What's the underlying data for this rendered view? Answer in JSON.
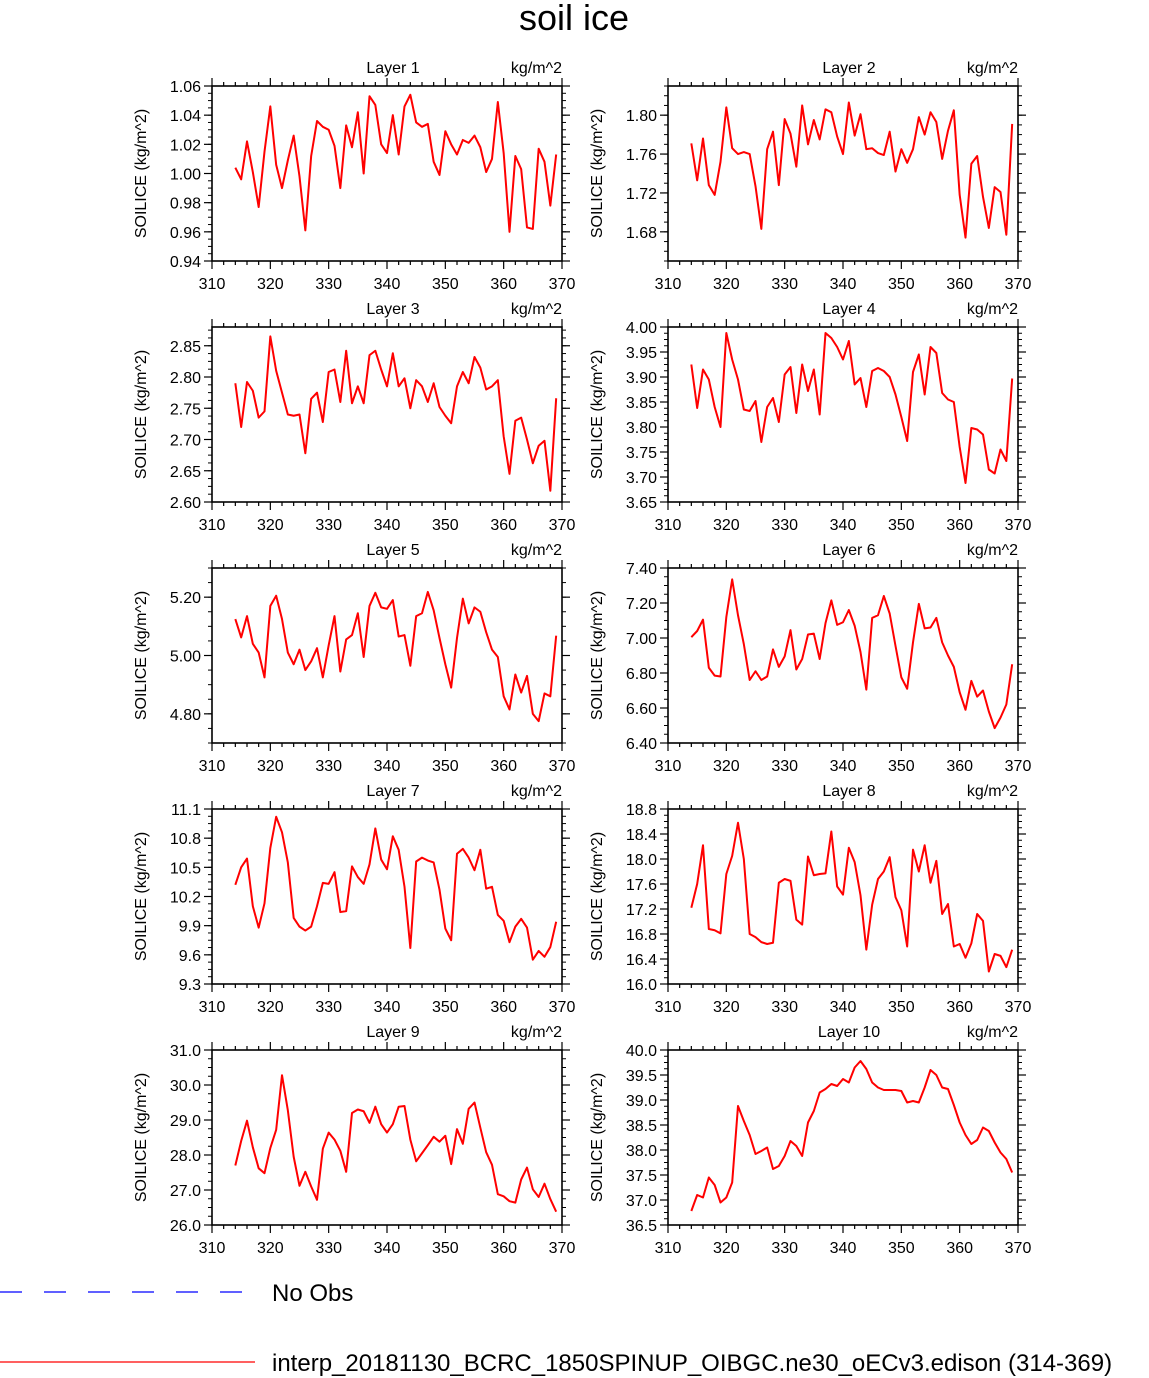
{
  "chart_data": {
    "type": "line",
    "title": "soil ice",
    "units_label": "kg/m^2",
    "ylabel": "SOILICE  (kg/m^2)",
    "x_start": 314,
    "xlim": [
      310,
      370
    ],
    "xticks": [
      310,
      320,
      330,
      340,
      350,
      360,
      370
    ],
    "colors": {
      "model": "#ff0000",
      "obs": "#0000ff",
      "axis": "#000000"
    },
    "legend": [
      {
        "name": "No Obs",
        "style": "dashed",
        "color": "#0000ff"
      },
      {
        "name": "interp_20181130_BCRC_1850SPINUP_OIBGC.ne30_oECv3.edison (314-369)",
        "style": "solid",
        "color": "#ff0000"
      }
    ],
    "panels": [
      {
        "name": "Layer 1",
        "ylim": [
          0.94,
          1.06
        ],
        "yticks": [
          0.94,
          0.96,
          0.98,
          1.0,
          1.02,
          1.04,
          1.06
        ],
        "ytick_labels": [
          "0.94",
          "0.96",
          "0.98",
          "1.00",
          "1.02",
          "1.04",
          "1.06"
        ],
        "values": [
          1.004,
          0.996,
          1.022,
          1.001,
          0.977,
          1.015,
          1.046,
          1.006,
          0.99,
          1.009,
          1.026,
          0.998,
          0.961,
          1.012,
          1.036,
          1.032,
          1.03,
          1.019,
          0.99,
          1.033,
          1.018,
          1.042,
          1.0,
          1.053,
          1.047,
          1.02,
          1.014,
          1.04,
          1.013,
          1.046,
          1.054,
          1.035,
          1.032,
          1.034,
          1.008,
          0.999,
          1.029,
          1.02,
          1.013,
          1.023,
          1.021,
          1.026,
          1.018,
          1.001,
          1.01,
          1.049,
          1.014,
          0.96,
          1.012,
          1.003,
          0.963,
          0.962,
          1.017,
          1.008,
          0.978,
          1.013
        ]
      },
      {
        "name": "Layer 2",
        "ylim": [
          1.65,
          1.83
        ],
        "yticks": [
          1.68,
          1.72,
          1.76,
          1.8
        ],
        "ytick_labels": [
          "1.68",
          "1.72",
          "1.76",
          "1.80"
        ],
        "values": [
          1.771,
          1.733,
          1.776,
          1.728,
          1.718,
          1.752,
          1.808,
          1.766,
          1.76,
          1.762,
          1.76,
          1.727,
          1.683,
          1.765,
          1.783,
          1.728,
          1.796,
          1.781,
          1.747,
          1.81,
          1.77,
          1.795,
          1.775,
          1.806,
          1.803,
          1.778,
          1.76,
          1.813,
          1.779,
          1.801,
          1.765,
          1.766,
          1.761,
          1.759,
          1.783,
          1.742,
          1.765,
          1.751,
          1.765,
          1.798,
          1.78,
          1.803,
          1.793,
          1.755,
          1.784,
          1.805,
          1.718,
          1.674,
          1.75,
          1.758,
          1.716,
          1.684,
          1.726,
          1.721,
          1.677,
          1.791
        ]
      },
      {
        "name": "Layer 3",
        "ylim": [
          2.6,
          2.88
        ],
        "yticks": [
          2.6,
          2.65,
          2.7,
          2.75,
          2.8,
          2.85
        ],
        "ytick_labels": [
          "2.60",
          "2.65",
          "2.70",
          "2.75",
          "2.80",
          "2.85"
        ],
        "values": [
          2.79,
          2.72,
          2.792,
          2.778,
          2.735,
          2.745,
          2.865,
          2.81,
          2.775,
          2.74,
          2.738,
          2.74,
          2.678,
          2.765,
          2.775,
          2.728,
          2.808,
          2.812,
          2.76,
          2.842,
          2.758,
          2.785,
          2.758,
          2.835,
          2.842,
          2.812,
          2.785,
          2.838,
          2.785,
          2.798,
          2.75,
          2.795,
          2.785,
          2.76,
          2.79,
          2.752,
          2.738,
          2.726,
          2.785,
          2.808,
          2.79,
          2.832,
          2.815,
          2.78,
          2.785,
          2.795,
          2.705,
          2.645,
          2.73,
          2.735,
          2.7,
          2.662,
          2.69,
          2.698,
          2.618,
          2.766
        ]
      },
      {
        "name": "Layer 4",
        "ylim": [
          3.65,
          4.0
        ],
        "yticks": [
          3.65,
          3.7,
          3.75,
          3.8,
          3.85,
          3.9,
          3.95,
          4.0
        ],
        "ytick_labels": [
          "3.65",
          "3.70",
          "3.75",
          "3.80",
          "3.85",
          "3.90",
          "3.95",
          "4.00"
        ],
        "values": [
          3.925,
          3.838,
          3.915,
          3.895,
          3.84,
          3.8,
          3.988,
          3.935,
          3.895,
          3.835,
          3.832,
          3.852,
          3.77,
          3.84,
          3.858,
          3.81,
          3.905,
          3.92,
          3.828,
          3.925,
          3.872,
          3.915,
          3.825,
          3.988,
          3.978,
          3.96,
          3.935,
          3.972,
          3.885,
          3.898,
          3.84,
          3.912,
          3.918,
          3.912,
          3.9,
          3.865,
          3.82,
          3.772,
          3.91,
          3.945,
          3.865,
          3.96,
          3.948,
          3.868,
          3.855,
          3.85,
          3.76,
          3.688,
          3.798,
          3.795,
          3.785,
          3.715,
          3.707,
          3.755,
          3.732,
          3.897
        ]
      },
      {
        "name": "Layer 5",
        "ylim": [
          4.7,
          5.3
        ],
        "yticks": [
          4.8,
          5.0,
          5.2
        ],
        "ytick_labels": [
          "4.80",
          "5.00",
          "5.20"
        ],
        "values": [
          5.125,
          5.062,
          5.135,
          5.04,
          5.01,
          4.925,
          5.17,
          5.205,
          5.125,
          5.01,
          4.97,
          5.02,
          4.95,
          4.98,
          5.025,
          4.925,
          5.035,
          5.135,
          4.945,
          5.055,
          5.07,
          5.145,
          4.995,
          5.17,
          5.215,
          5.165,
          5.16,
          5.19,
          5.065,
          5.07,
          4.965,
          5.135,
          5.145,
          5.218,
          5.155,
          5.06,
          4.97,
          4.89,
          5.06,
          5.195,
          5.11,
          5.165,
          5.15,
          5.08,
          5.02,
          4.995,
          4.86,
          4.815,
          4.935,
          4.873,
          4.93,
          4.8,
          4.775,
          4.87,
          4.86,
          5.068
        ]
      },
      {
        "name": "Layer 6",
        "ylim": [
          6.4,
          7.4
        ],
        "yticks": [
          6.4,
          6.6,
          6.8,
          7.0,
          7.2,
          7.4
        ],
        "ytick_labels": [
          "6.40",
          "6.60",
          "6.80",
          "7.00",
          "7.20",
          "7.40"
        ],
        "values": [
          7.005,
          7.04,
          7.105,
          6.83,
          6.785,
          6.78,
          7.12,
          7.335,
          7.13,
          6.965,
          6.76,
          6.81,
          6.76,
          6.78,
          6.935,
          6.835,
          6.895,
          7.045,
          6.82,
          6.88,
          7.02,
          7.025,
          6.88,
          7.085,
          7.215,
          7.075,
          7.09,
          7.16,
          7.07,
          6.92,
          6.705,
          7.115,
          7.13,
          7.24,
          7.14,
          6.955,
          6.775,
          6.71,
          6.975,
          7.195,
          7.055,
          7.06,
          7.115,
          6.975,
          6.9,
          6.835,
          6.69,
          6.59,
          6.755,
          6.665,
          6.7,
          6.58,
          6.485,
          6.545,
          6.62,
          6.85
        ]
      },
      {
        "name": "Layer 7",
        "ylim": [
          9.3,
          11.1
        ],
        "yticks": [
          9.3,
          9.6,
          9.9,
          10.2,
          10.5,
          10.8,
          11.1
        ],
        "ytick_labels": [
          "9.3",
          "9.6",
          "9.9",
          "10.2",
          "10.5",
          "10.8",
          "11.1"
        ],
        "values": [
          10.32,
          10.5,
          10.59,
          10.1,
          9.88,
          10.13,
          10.7,
          11.02,
          10.86,
          10.55,
          9.98,
          9.89,
          9.85,
          9.89,
          10.1,
          10.34,
          10.33,
          10.45,
          10.04,
          10.05,
          10.51,
          10.4,
          10.33,
          10.53,
          10.9,
          10.58,
          10.48,
          10.82,
          10.68,
          10.3,
          9.67,
          10.56,
          10.6,
          10.57,
          10.55,
          10.27,
          9.87,
          9.75,
          10.64,
          10.69,
          10.6,
          10.47,
          10.68,
          10.28,
          10.3,
          10.01,
          9.95,
          9.73,
          9.89,
          9.97,
          9.88,
          9.55,
          9.64,
          9.58,
          9.68,
          9.94
        ]
      },
      {
        "name": "Layer 8",
        "ylim": [
          16.0,
          18.8
        ],
        "yticks": [
          16.0,
          16.4,
          16.8,
          17.2,
          17.6,
          18.0,
          18.4,
          18.8
        ],
        "ytick_labels": [
          "16.0",
          "16.4",
          "16.8",
          "17.2",
          "17.6",
          "18.0",
          "18.4",
          "18.8"
        ],
        "values": [
          17.22,
          17.6,
          18.22,
          16.88,
          16.86,
          16.81,
          17.76,
          18.05,
          18.58,
          18.0,
          16.8,
          16.75,
          16.67,
          16.64,
          16.66,
          17.62,
          17.68,
          17.65,
          17.03,
          16.95,
          18.04,
          17.74,
          17.76,
          17.77,
          18.44,
          17.56,
          17.43,
          18.18,
          17.95,
          17.42,
          16.55,
          17.27,
          17.68,
          17.8,
          18.03,
          17.39,
          17.18,
          16.6,
          18.15,
          17.8,
          18.22,
          17.62,
          17.97,
          17.12,
          17.28,
          16.6,
          16.64,
          16.42,
          16.65,
          17.12,
          17.01,
          16.2,
          16.48,
          16.45,
          16.27,
          16.55
        ]
      },
      {
        "name": "Layer 9",
        "ylim": [
          26.0,
          31.0
        ],
        "yticks": [
          26.0,
          27.0,
          28.0,
          29.0,
          30.0,
          31.0
        ],
        "ytick_labels": [
          "26.0",
          "27.0",
          "28.0",
          "29.0",
          "30.0",
          "31.0"
        ],
        "values": [
          27.7,
          28.4,
          28.98,
          28.22,
          27.62,
          27.48,
          28.2,
          28.72,
          30.28,
          29.28,
          27.95,
          27.12,
          27.52,
          27.1,
          26.72,
          28.18,
          28.64,
          28.44,
          28.12,
          27.52,
          29.2,
          29.3,
          29.25,
          28.92,
          29.38,
          28.88,
          28.64,
          28.88,
          29.38,
          29.4,
          28.44,
          27.82,
          28.05,
          28.28,
          28.52,
          28.38,
          28.55,
          27.74,
          28.74,
          28.32,
          29.32,
          29.5,
          28.78,
          28.08,
          27.72,
          26.88,
          26.82,
          26.68,
          26.64,
          27.3,
          27.64,
          27.02,
          26.8,
          27.18,
          26.74,
          26.38
        ]
      },
      {
        "name": "Layer 10",
        "ylim": [
          36.5,
          40.0
        ],
        "yticks": [
          36.5,
          37.0,
          37.5,
          38.0,
          38.5,
          39.0,
          39.5,
          40.0
        ],
        "ytick_labels": [
          "36.5",
          "37.0",
          "37.5",
          "38.0",
          "38.5",
          "39.0",
          "39.5",
          "40.0"
        ],
        "values": [
          36.78,
          37.1,
          37.05,
          37.45,
          37.3,
          36.95,
          37.05,
          37.35,
          38.88,
          38.58,
          38.3,
          37.92,
          37.98,
          38.05,
          37.62,
          37.68,
          37.88,
          38.18,
          38.08,
          37.88,
          38.55,
          38.78,
          39.15,
          39.22,
          39.32,
          39.28,
          39.42,
          39.35,
          39.65,
          39.78,
          39.62,
          39.35,
          39.25,
          39.2,
          39.2,
          39.2,
          39.18,
          38.95,
          38.98,
          38.95,
          39.25,
          39.6,
          39.5,
          39.25,
          39.22,
          38.9,
          38.55,
          38.3,
          38.12,
          38.2,
          38.45,
          38.38,
          38.15,
          37.95,
          37.82,
          37.55
        ]
      }
    ]
  }
}
